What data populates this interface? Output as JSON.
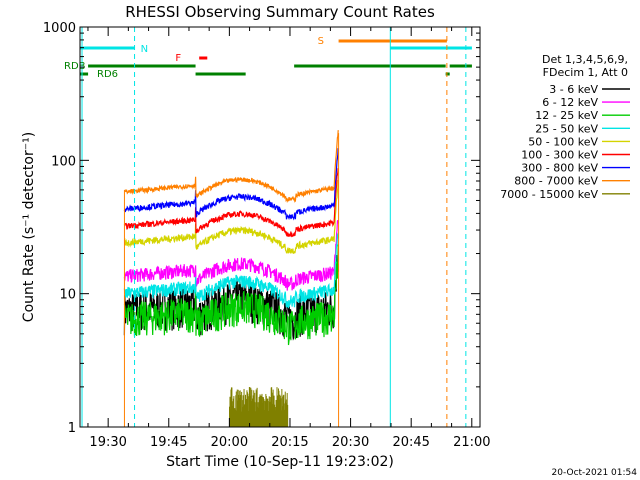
{
  "chart_data": {
    "type": "line",
    "title": "RHESSI Observing Summary Count Rates",
    "xlabel": "Start Time (10-Sep-11 19:23:02)",
    "ylabel": "Count Rate (s⁻¹ detector⁻¹)",
    "ylog": true,
    "ylim": [
      1,
      1000
    ],
    "xlim_minutes": [
      0,
      99
    ],
    "x_tick_labels": [
      "19:30",
      "19:45",
      "20:00",
      "20:15",
      "20:30",
      "20:45",
      "21:00"
    ],
    "x_tick_minutes": [
      6.97,
      21.97,
      36.97,
      51.97,
      66.97,
      81.97,
      96.97
    ],
    "y_tick_labels": [
      "1",
      "10",
      "100",
      "1000"
    ],
    "y_tick_values": [
      1,
      10,
      100,
      1000
    ],
    "legend_header": [
      "Det 1,3,4,5,6,9,",
      "FDecim 1, Att 0"
    ],
    "legend_position": "right",
    "series": [
      {
        "name": "3 - 6 keV",
        "color": "#000000",
        "level": 7.5,
        "noise": 0.35
      },
      {
        "name": "6 - 12 keV",
        "color": "#ff00ff",
        "level": 13.5,
        "noise": 0.12
      },
      {
        "name": "12 - 25 keV",
        "color": "#00cc00",
        "level": 6.5,
        "noise": 0.3
      },
      {
        "name": "25 - 50 keV",
        "color": "#00e5e5",
        "level": 10.0,
        "noise": 0.12
      },
      {
        "name": "50 - 100 keV",
        "color": "#d4d400",
        "level": 24.0,
        "noise": 0.06
      },
      {
        "name": "100 - 300 keV",
        "color": "#ff0000",
        "level": 32.0,
        "noise": 0.05
      },
      {
        "name": "300 - 800 keV",
        "color": "#0000ff",
        "level": 43.0,
        "noise": 0.05
      },
      {
        "name": "800 - 7000 keV",
        "color": "#ff8000",
        "level": 58.0,
        "noise": 0.04
      },
      {
        "name": "7000 - 15000 keV",
        "color": "#808000",
        "level": 1.5,
        "noise": 0.3
      }
    ],
    "flags": [
      {
        "label": "RDB",
        "color": "#008000"
      },
      {
        "label": "RD6",
        "color": "#008000"
      },
      {
        "label": "N",
        "color": "#00e5e5"
      },
      {
        "label": "F",
        "color": "#ff0000"
      },
      {
        "label": "S",
        "color": "#ff8000"
      }
    ],
    "timestamp": "20-Oct-2021 01:54"
  }
}
